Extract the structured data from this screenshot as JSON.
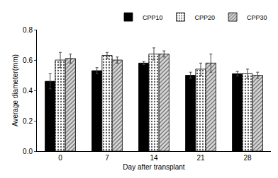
{
  "chart_data": {
    "type": "bar",
    "x_label": "Day after transplant",
    "y_label": "Average diameter(mm)",
    "categories": [
      "0",
      "7",
      "14",
      "21",
      "28"
    ],
    "series": [
      {
        "name": "CPP10",
        "color": "#000000",
        "marker": "solid",
        "values": [
          0.46,
          0.53,
          0.58,
          0.5,
          0.51
        ],
        "errors": [
          0.05,
          0.02,
          0.01,
          0.02,
          0.015
        ]
      },
      {
        "name": "CPP20",
        "color": "#ffffff",
        "marker": "dots",
        "values": [
          0.6,
          0.63,
          0.64,
          0.54,
          0.51
        ],
        "errors": [
          0.05,
          0.02,
          0.04,
          0.04,
          0.03
        ]
      },
      {
        "name": "CPP30",
        "color": "#d9d9d9",
        "marker": "hatch",
        "values": [
          0.61,
          0.6,
          0.64,
          0.58,
          0.5
        ],
        "errors": [
          0.03,
          0.02,
          0.02,
          0.06,
          0.02
        ]
      }
    ],
    "ylim": [
      0,
      0.8
    ],
    "yticks": [
      {
        "value": 0,
        "label": "0.0"
      },
      0.2,
      0.4,
      0.6,
      0.8
    ],
    "grid": false,
    "legend": "top right"
  }
}
